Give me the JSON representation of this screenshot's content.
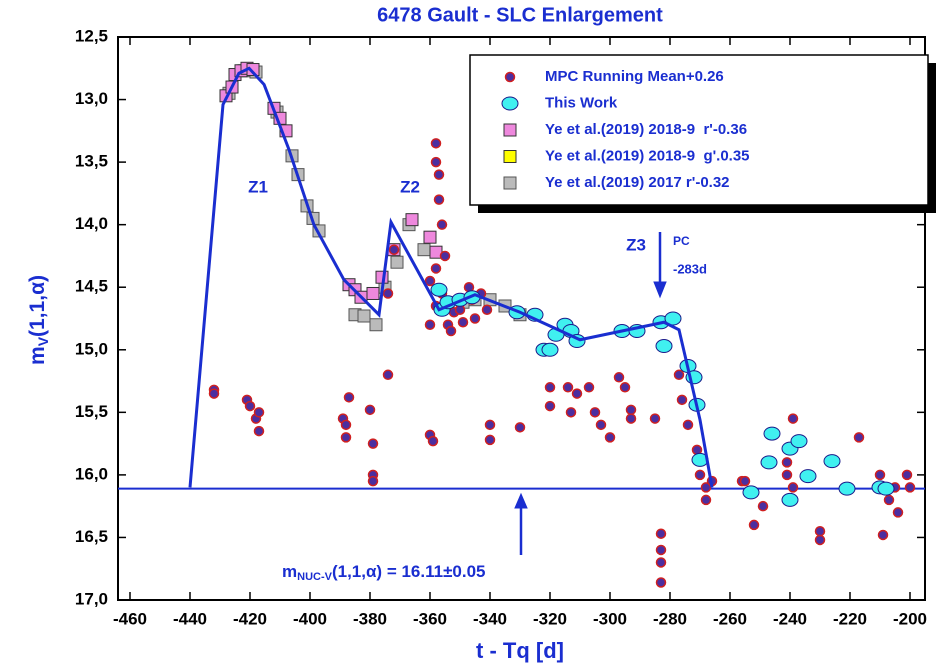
{
  "chart_data": {
    "type": "scatter",
    "title": "6478 Gault - SLC Enlargement",
    "xlabel": "t - Tq [d]",
    "ylabel": {
      "main": "m",
      "sub": "V",
      "rest": "(1,1,α)"
    },
    "xlim": [
      -464,
      -195
    ],
    "ylim": [
      17.0,
      12.5
    ],
    "xticks": [
      -460,
      -440,
      -420,
      -400,
      -380,
      -360,
      -340,
      -320,
      -300,
      -280,
      -260,
      -240,
      -220,
      -200
    ],
    "yticks": [
      {
        "value": 12.5,
        "label": "12,5"
      },
      {
        "value": 13.0,
        "label": "13,0"
      },
      {
        "value": 13.5,
        "label": "13,5"
      },
      {
        "value": 14.0,
        "label": "14,0"
      },
      {
        "value": 14.5,
        "label": "14,5"
      },
      {
        "value": 15.0,
        "label": "15,0"
      },
      {
        "value": 15.5,
        "label": "15,5"
      },
      {
        "value": 16.0,
        "label": "16,0"
      },
      {
        "value": 16.5,
        "label": "16,5"
      },
      {
        "value": 17.0,
        "label": "17,0"
      }
    ],
    "series": [
      {
        "name": "MPC Running Mean+0.26",
        "color": "#4b2ea0",
        "edge": "#d02020",
        "marker": "circle",
        "x": [
          -432,
          -432,
          -421,
          -420,
          -418,
          -417,
          -417,
          -389,
          -388,
          -388,
          -387,
          -380,
          -379,
          -379,
          -379,
          -374,
          -374,
          -372,
          -360,
          -359,
          -360,
          -358,
          -358,
          -357,
          -357,
          -356,
          -358,
          -360,
          -355,
          -356,
          -358,
          -354,
          -352,
          -353,
          -349,
          -350,
          -346,
          -345,
          -347,
          -343,
          -341,
          -340,
          -340,
          -330,
          -320,
          -320,
          -314,
          -313,
          -311,
          -307,
          -305,
          -303,
          -300,
          -297,
          -295,
          -293,
          -293,
          -285,
          -283,
          -283,
          -283,
          -283,
          -277,
          -276,
          -274,
          -271,
          -270,
          -268,
          -268,
          -266,
          -256,
          -255,
          -252,
          -249,
          -241,
          -241,
          -239,
          -239,
          -230,
          -230,
          -217,
          -210,
          -209,
          -207,
          -205,
          -204,
          -201,
          -200
        ],
        "values": [
          15.32,
          15.35,
          15.4,
          15.45,
          15.55,
          15.65,
          15.5,
          15.55,
          15.6,
          15.7,
          15.38,
          15.48,
          15.75,
          16.0,
          16.05,
          14.55,
          15.2,
          14.2,
          15.68,
          15.73,
          14.8,
          13.35,
          13.5,
          13.6,
          13.8,
          14.0,
          14.35,
          14.45,
          14.25,
          14.55,
          14.65,
          14.8,
          14.7,
          14.85,
          14.78,
          14.68,
          14.6,
          14.75,
          14.5,
          14.55,
          14.68,
          15.6,
          15.72,
          15.62,
          15.45,
          15.3,
          15.3,
          15.5,
          15.35,
          15.3,
          15.5,
          15.6,
          15.7,
          15.22,
          15.3,
          15.48,
          15.55,
          15.55,
          16.47,
          16.6,
          16.7,
          16.86,
          15.2,
          15.4,
          15.6,
          15.8,
          16.0,
          16.1,
          16.2,
          16.05,
          16.05,
          16.05,
          16.4,
          16.25,
          16.0,
          15.9,
          15.55,
          16.1,
          16.45,
          16.52,
          15.7,
          16.0,
          16.48,
          16.2,
          16.1,
          16.3,
          16.0,
          16.1
        ]
      },
      {
        "name": "This Work",
        "color": "#40f0f0",
        "edge": "#1a1a8a",
        "marker": "ellipse",
        "x": [
          -357,
          -356,
          -354,
          -350,
          -346,
          -331,
          -325,
          -322,
          -320,
          -318,
          -315,
          -313,
          -311,
          -296,
          -291,
          -283,
          -282,
          -279,
          -274,
          -272,
          -271,
          -270,
          -253,
          -247,
          -246,
          -240,
          -240,
          -237,
          -234,
          -226,
          -221,
          -210,
          -208
        ],
        "values": [
          14.52,
          14.68,
          14.62,
          14.6,
          14.58,
          14.7,
          14.72,
          15.0,
          15.0,
          14.88,
          14.8,
          14.85,
          14.93,
          14.85,
          14.85,
          14.78,
          14.97,
          14.75,
          15.13,
          15.22,
          15.44,
          15.88,
          16.14,
          15.9,
          15.67,
          16.2,
          15.79,
          15.73,
          16.01,
          15.89,
          16.11,
          16.1,
          16.11
        ]
      },
      {
        "name": "Ye et al.(2019) 2018-9  r'-0.36",
        "color": "#ee88dd",
        "edge": "#333333",
        "marker": "square",
        "x": [
          -428,
          -426,
          -425,
          -423,
          -421,
          -419,
          -412,
          -410,
          -408,
          -387,
          -385,
          -383,
          -379,
          -376,
          -372,
          -366,
          -360,
          -358
        ],
        "values": [
          12.97,
          12.9,
          12.8,
          12.77,
          12.75,
          12.76,
          13.07,
          13.15,
          13.25,
          14.48,
          14.52,
          14.58,
          14.55,
          14.42,
          14.2,
          13.96,
          14.1,
          14.22
        ]
      },
      {
        "name": "Ye et al.(2019) 2018-9  g'.0.35",
        "color": "#ffff00",
        "edge": "#333333",
        "marker": "square",
        "x": [],
        "values": []
      },
      {
        "name": "Ye et al.(2019) 2017 r'-0.32",
        "color": "#bbbbbb",
        "edge": "#555555",
        "marker": "square",
        "x": [
          -427,
          -422,
          -418,
          -411,
          -406,
          -404,
          -401,
          -399,
          -397,
          -385,
          -382,
          -378,
          -375,
          -371,
          -367,
          -362,
          -349,
          -345,
          -340,
          -335,
          -330
        ],
        "values": [
          12.95,
          12.77,
          12.78,
          13.1,
          13.45,
          13.6,
          13.85,
          13.95,
          14.05,
          14.72,
          14.73,
          14.8,
          14.5,
          14.3,
          14.0,
          14.2,
          14.62,
          14.6,
          14.6,
          14.65,
          14.72
        ]
      }
    ],
    "fit": {
      "color": "#1a2ed0",
      "x": [
        -440,
        -429,
        -423.7,
        -420.3,
        -415.3,
        -407,
        -398.7,
        -388.7,
        -377,
        -373,
        -357,
        -345,
        -330,
        -310,
        -282,
        -277,
        -270,
        -266
      ],
      "values": [
        16.1,
        13.04,
        12.79,
        12.75,
        12.88,
        13.4,
        14.0,
        14.44,
        14.72,
        13.98,
        14.68,
        14.56,
        14.7,
        14.92,
        14.78,
        14.84,
        15.56,
        16.1
      ]
    },
    "nucleus_mag": 16.11,
    "nucleus_label": {
      "main": "m",
      "sub": "NUC-V",
      "rest": "(1,1,α) = 16.11±0.05"
    },
    "zone_labels": [
      "Z1",
      "Z2",
      "Z3"
    ],
    "pc_label": "PC",
    "pc_day": "-283d"
  }
}
